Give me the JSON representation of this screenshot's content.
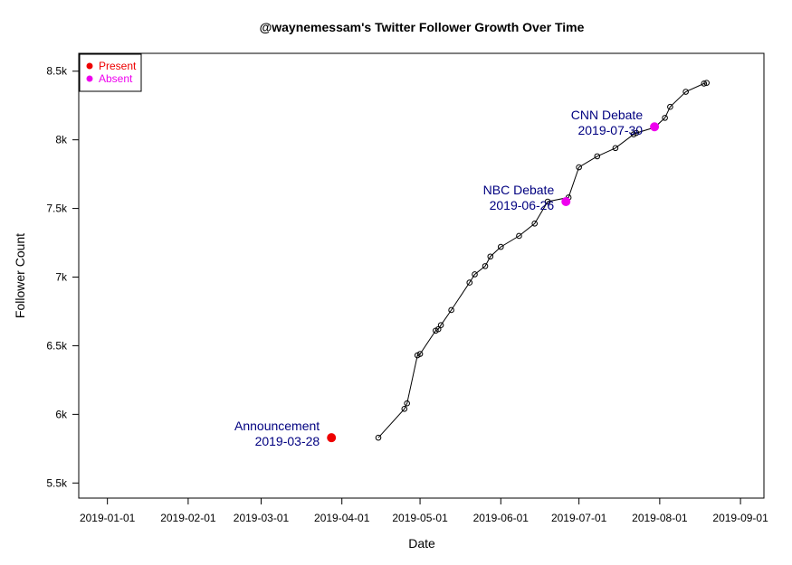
{
  "chart_data": {
    "type": "line",
    "title": "@waynemessam's Twitter Follower Growth Over Time",
    "xlabel": "Date",
    "ylabel": "Follower Count",
    "xlim": [
      "2018-12-21",
      "2019-09-10"
    ],
    "ylim": [
      5390,
      8630
    ],
    "x_ticks": [
      "2019-01-01",
      "2019-02-01",
      "2019-03-01",
      "2019-04-01",
      "2019-05-01",
      "2019-06-01",
      "2019-07-01",
      "2019-08-01",
      "2019-09-01"
    ],
    "x_tick_labels": [
      "2019-01-01",
      "2019-02-01",
      "2019-03-01",
      "2019-04-01",
      "2019-05-01",
      "2019-06-01",
      "2019-07-01",
      "2019-08-01",
      "2019-09-01"
    ],
    "y_ticks": [
      5500,
      6000,
      6500,
      7000,
      7500,
      8000,
      8500
    ],
    "y_tick_labels": [
      "5.5k",
      "6k",
      "6.5k",
      "7k",
      "7.5k",
      "8k",
      "8.5k"
    ],
    "series": [
      {
        "x": [
          "2019-04-15",
          "2019-04-25",
          "2019-04-26",
          "2019-04-30",
          "2019-05-01",
          "2019-05-07",
          "2019-05-08",
          "2019-05-09",
          "2019-05-13",
          "2019-05-20",
          "2019-05-22",
          "2019-05-26",
          "2019-05-28",
          "2019-06-01",
          "2019-06-08",
          "2019-06-14",
          "2019-06-19",
          "2019-06-27",
          "2019-07-01",
          "2019-07-08",
          "2019-07-15",
          "2019-07-22",
          "2019-07-23",
          "2019-07-30",
          "2019-08-03",
          "2019-08-05",
          "2019-08-11",
          "2019-08-18",
          "2019-08-19"
        ],
        "y": [
          5830,
          6040,
          6080,
          6430,
          6440,
          6610,
          6620,
          6650,
          6760,
          6960,
          7020,
          7080,
          7150,
          7220,
          7300,
          7390,
          7550,
          7580,
          7800,
          7880,
          7940,
          8040,
          8050,
          8090,
          8160,
          8240,
          8350,
          8410,
          8415
        ]
      }
    ],
    "events": [
      {
        "date": "2019-03-28",
        "y": 5830,
        "name": "Announcement",
        "date_label": "2019-03-28",
        "status": "Present"
      },
      {
        "date": "2019-06-26",
        "y": 7550,
        "name": "NBC Debate",
        "date_label": "2019-06-26",
        "status": "Absent"
      },
      {
        "date": "2019-07-30",
        "y": 8095,
        "name": "CNN Debate",
        "date_label": "2019-07-30",
        "status": "Absent"
      }
    ],
    "legend": {
      "position": "top-left",
      "entries": [
        {
          "label": "Present",
          "color": "#ee0000"
        },
        {
          "label": "Absent",
          "color": "#ee00ee"
        }
      ]
    },
    "colors": {
      "present": "#ee0000",
      "absent": "#ee00ee",
      "annotation": "#000080",
      "line": "#000000"
    },
    "grid": false
  }
}
